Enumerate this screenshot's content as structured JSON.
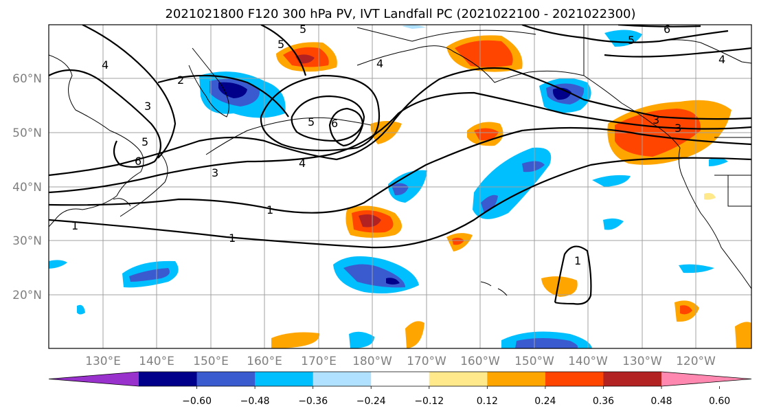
{
  "title": "2021021800 F120 300 hPa PV, IVT Landfall PC (2021022100 - 2021022300)",
  "lat_labels": [
    "60°N",
    "50°N",
    "40°N",
    "30°N",
    "20°N"
  ],
  "lon_labels": [
    "130°E",
    "140°E",
    "150°E",
    "160°E",
    "170°E",
    "180°W",
    "170°W",
    "160°W",
    "150°W",
    "140°W",
    "130°W",
    "120°W"
  ],
  "colorbar": {
    "tick_labels": [
      "−0.60",
      "−0.48",
      "−0.36",
      "−0.24",
      "−0.12",
      "0.12",
      "0.24",
      "0.36",
      "0.48",
      "0.60"
    ],
    "colors": [
      "#9932cc",
      "#00008b",
      "#3a5bd0",
      "#00bfff",
      "#b0e2ff",
      "#ffffff",
      "#ffe98a",
      "#ffa500",
      "#ff4500",
      "#b22222",
      "#ff88b0"
    ]
  },
  "contour_labels": [
    "5",
    "6",
    "5",
    "4",
    "3",
    "2",
    "1",
    "1",
    "1",
    "3",
    "4",
    "5",
    "6",
    "4",
    "5",
    "3",
    "1",
    "6",
    "5",
    "4",
    "3"
  ]
}
